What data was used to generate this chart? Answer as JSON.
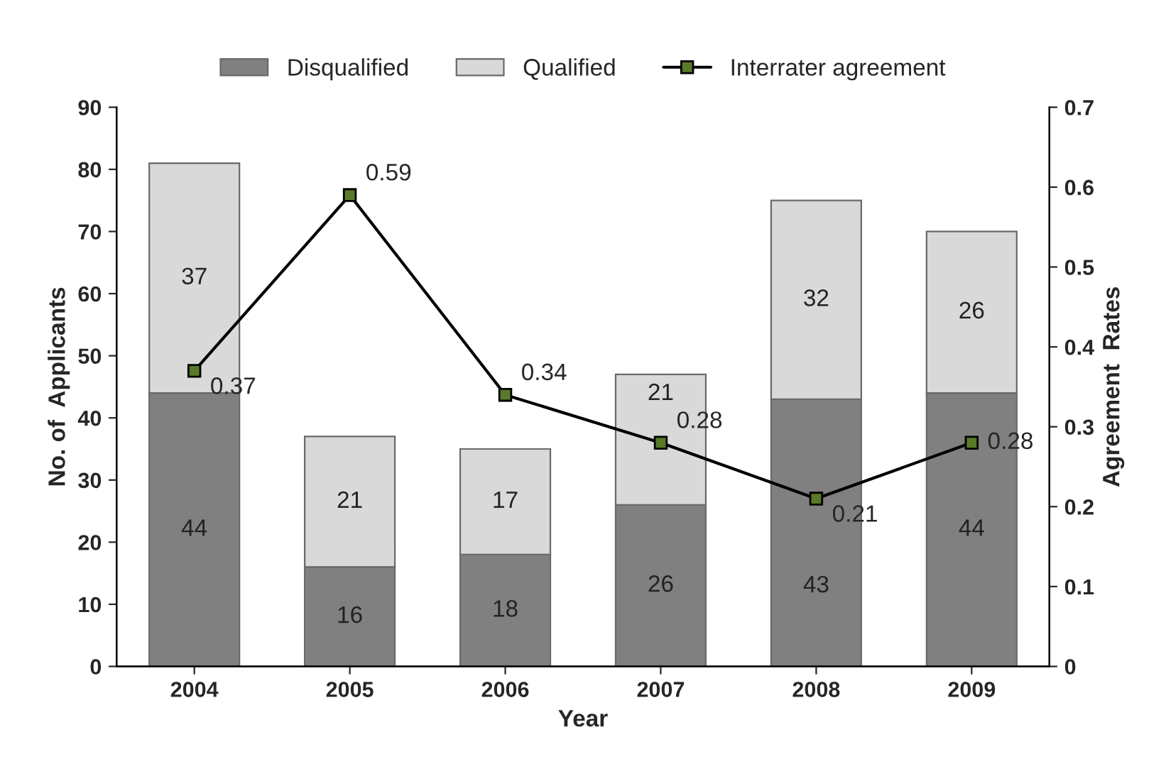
{
  "chart_data": {
    "type": "bar",
    "stacked": true,
    "xlabel": "Year",
    "ylabel": "No. of  Applicants",
    "y2label": "Agreement  Rates",
    "categories": [
      "2004",
      "2005",
      "2006",
      "2007",
      "2008",
      "2009"
    ],
    "series": [
      {
        "name": "Disqualified",
        "color": "#808080",
        "values": [
          44,
          16,
          18,
          26,
          43,
          44
        ]
      },
      {
        "name": "Qualified",
        "color": "#d9d9d9",
        "values": [
          37,
          21,
          17,
          21,
          32,
          26
        ]
      },
      {
        "name": "Interrater agreement",
        "type": "line",
        "axis": "y2",
        "color": "#000000",
        "marker": "square",
        "values": [
          0.37,
          0.59,
          0.34,
          0.28,
          0.21,
          0.28
        ]
      }
    ],
    "ylim": [
      0,
      90
    ],
    "yticks": [
      0,
      10,
      20,
      30,
      40,
      50,
      60,
      70,
      80,
      90
    ],
    "y2lim": [
      0,
      0.7
    ],
    "y2ticks": [
      0,
      0.1,
      0.2,
      0.3,
      0.4,
      0.5,
      0.6,
      0.7
    ],
    "data_labels": true,
    "legend": "top",
    "grid": false
  }
}
